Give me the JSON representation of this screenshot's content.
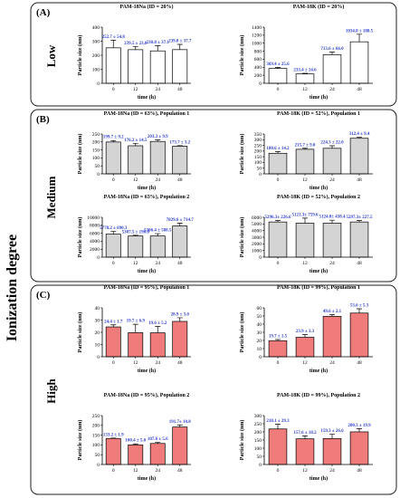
{
  "side_label": "Ionization degree",
  "colors": {
    "low": "#ffffff",
    "medium": "#d4d4d4",
    "high": "#f07b7b",
    "label": "#2e3fd0"
  },
  "panels": [
    {
      "letter": "(A)",
      "label": "Low"
    },
    {
      "letter": "(B)",
      "label": "Medium"
    },
    {
      "letter": "(C)",
      "label": "High"
    }
  ],
  "chart_data": [
    {
      "type": "bar",
      "group": "low",
      "title": "PAM-18Na (ID = 20%)",
      "categories": [
        "0",
        "12",
        "24",
        "48"
      ],
      "values": [
        252.7,
        239.5,
        230.8,
        239.8
      ],
      "errors": [
        54.8,
        23.0,
        37.1,
        37.7
      ],
      "labels": [
        "252.7 ± 54.8",
        "239.5 ± 23.0",
        "230.8 ± 37.1",
        "239.8 ± 37.7"
      ],
      "ylim": [
        0,
        400
      ],
      "ticks": [
        0,
        100,
        200,
        300,
        400
      ],
      "xlabel": "time (h)",
      "ylabel": "Particle size (nm)"
    },
    {
      "type": "bar",
      "group": "low",
      "title": "PAM-18K (ID = 20%)",
      "categories": [
        "0",
        "12",
        "24",
        "48"
      ],
      "values": [
        369.4,
        233.4,
        713.6,
        1034.8
      ],
      "errors": [
        25.6,
        14.6,
        66.0,
        188.5
      ],
      "labels": [
        "369.4 ± 25.6",
        "233.4 ± 14.6",
        "713.6 ± 66.0",
        "1034.8 ± 188.5"
      ],
      "ylim": [
        0,
        1400
      ],
      "ticks": [
        0,
        200,
        400,
        600,
        800,
        1000,
        1200,
        1400
      ],
      "xlabel": "time (h)",
      "ylabel": "Particle size (nm)"
    },
    {
      "type": "bar",
      "group": "medium",
      "title": "PAM-18Na (ID = 63%), Population 1",
      "categories": [
        "0",
        "12",
        "24",
        "48"
      ],
      "values": [
        199.7,
        176.2,
        203.3,
        173.7
      ],
      "errors": [
        9.2,
        14.5,
        9.9,
        3.2
      ],
      "labels": [
        "199.7 ± 9.2",
        "176.2 ± 14.5",
        "203.3 ± 9.9",
        "173.7 ± 3.2"
      ],
      "ylim": [
        0,
        250
      ],
      "ticks": [
        0,
        50,
        100,
        150,
        200,
        250
      ],
      "xlabel": "time (h)",
      "ylabel": "Particle size (nm)"
    },
    {
      "type": "bar",
      "group": "medium",
      "title": "PAM-18K (ID = 52%), Population 1",
      "categories": [
        "0",
        "12",
        "24",
        "48"
      ],
      "values": [
        180.6,
        215.7,
        224.3,
        312.4
      ],
      "errors": [
        14.2,
        9.0,
        22.0,
        9.4
      ],
      "labels": [
        "180.6 ± 14.2",
        "215.7 ± 9.0",
        "224.3 ± 22.0",
        "312.4 ± 9.4"
      ],
      "ylim": [
        0,
        350
      ],
      "ticks": [
        0,
        50,
        100,
        150,
        200,
        250,
        300,
        350
      ],
      "xlabel": "time (h)",
      "ylabel": "Particle size (nm)"
    },
    {
      "type": "bar",
      "group": "medium",
      "title": "PAM-18Na (ID = 63%), Population 2",
      "categories": [
        "0",
        "12",
        "24",
        "48"
      ],
      "values": [
        5778.2,
        5307.5,
        5306.4,
        7829.6
      ],
      "errors": [
        690.3,
        190.0,
        588.5,
        714.7
      ],
      "labels": [
        "5778.2 ± 690.3",
        "5307.5 ± 190.0",
        "5306.4 ± 588.5",
        "7829.6 ± 714.7"
      ],
      "ylim": [
        0,
        10000
      ],
      "ticks": [
        0,
        2000,
        4000,
        6000,
        8000,
        10000
      ],
      "xlabel": "time (h)",
      "ylabel": "Particle size (nm)"
    },
    {
      "type": "bar",
      "group": "medium",
      "title": "PAM-18K (ID = 52%), Population 2",
      "categories": [
        "0",
        "12",
        "24",
        "48"
      ],
      "values": [
        5296.3,
        5121.3,
        5124.0,
        5297.3
      ],
      "errors": [
        226.6,
        759.6,
        438.4,
        227.5
      ],
      "labels": [
        "5296.3± 226.6",
        "5121.3± 759.6",
        "5124.0± 438.4",
        "5297.3± 227.5"
      ],
      "ylim": [
        0,
        6000
      ],
      "ticks": [
        0,
        1000,
        2000,
        3000,
        4000,
        5000,
        6000
      ],
      "xlabel": "time (h)",
      "ylabel": "Particle size (nm)"
    },
    {
      "type": "bar",
      "group": "high",
      "title": "PAM-18Na (ID = 95%), Population 1",
      "categories": [
        "0",
        "12",
        "24",
        "48"
      ],
      "values": [
        24.4,
        19.7,
        19.6,
        28.9
      ],
      "errors": [
        1.7,
        6.9,
        5.2,
        3.0
      ],
      "labels": [
        "24.4 ± 1.7",
        "19.7 ± 6.9",
        "19.6 ± 5.2",
        "28.9 ± 3.0"
      ],
      "ylim": [
        0,
        40
      ],
      "ticks": [
        0,
        10,
        20,
        30,
        40
      ],
      "xlabel": "time (h)",
      "ylabel": "Particle size (nm)"
    },
    {
      "type": "bar",
      "group": "high",
      "title": "PAM-18K (ID = 99%), Population 1",
      "categories": [
        "0",
        "12",
        "24",
        "48"
      ],
      "values": [
        19.7,
        23.9,
        49.6,
        53.6
      ],
      "errors": [
        1.5,
        3.3,
        2.1,
        5.3
      ],
      "labels": [
        "19.7 ± 1.5",
        "23.9 ± 3.3",
        "49.6 ± 2.1",
        "53.6 ± 5.3"
      ],
      "ylim": [
        0,
        60
      ],
      "ticks": [
        0,
        10,
        20,
        30,
        40,
        50,
        60
      ],
      "xlabel": "time (h)",
      "ylabel": "Particle size (nm)"
    },
    {
      "type": "bar",
      "group": "high",
      "title": "PAM-18Na (ID = 95%), Population 2",
      "categories": [
        "0",
        "12",
        "24",
        "48"
      ],
      "values": [
        133.2,
        100.4,
        107.6,
        191.7
      ],
      "errors": [
        1.9,
        5.0,
        5.6,
        10.8
      ],
      "labels": [
        "133.2 ± 1.9",
        "100.4 ± 5.0",
        "107.6 ± 5.6",
        "191.7± 10.8"
      ],
      "ylim": [
        0,
        250
      ],
      "ticks": [
        0,
        50,
        100,
        150,
        200,
        250
      ],
      "xlabel": "time (h)",
      "ylabel": "Particle size (nm)"
    },
    {
      "type": "bar",
      "group": "high",
      "title": "PAM-18K (ID = 99%), Population 2",
      "categories": [
        "0",
        "12",
        "24",
        "48"
      ],
      "values": [
        218.1,
        157.6,
        159.3,
        200.3
      ],
      "errors": [
        29.3,
        18.2,
        26.6,
        19.9
      ],
      "labels": [
        "218.1 ± 29.3",
        "157.6 ± 18.2",
        "159.3 ± 26.6",
        "200.3 ± 19.9"
      ],
      "ylim": [
        0,
        300
      ],
      "ticks": [
        0,
        50,
        100,
        150,
        200,
        250,
        300
      ],
      "xlabel": "time (h)",
      "ylabel": "Particle size (nm)"
    }
  ]
}
